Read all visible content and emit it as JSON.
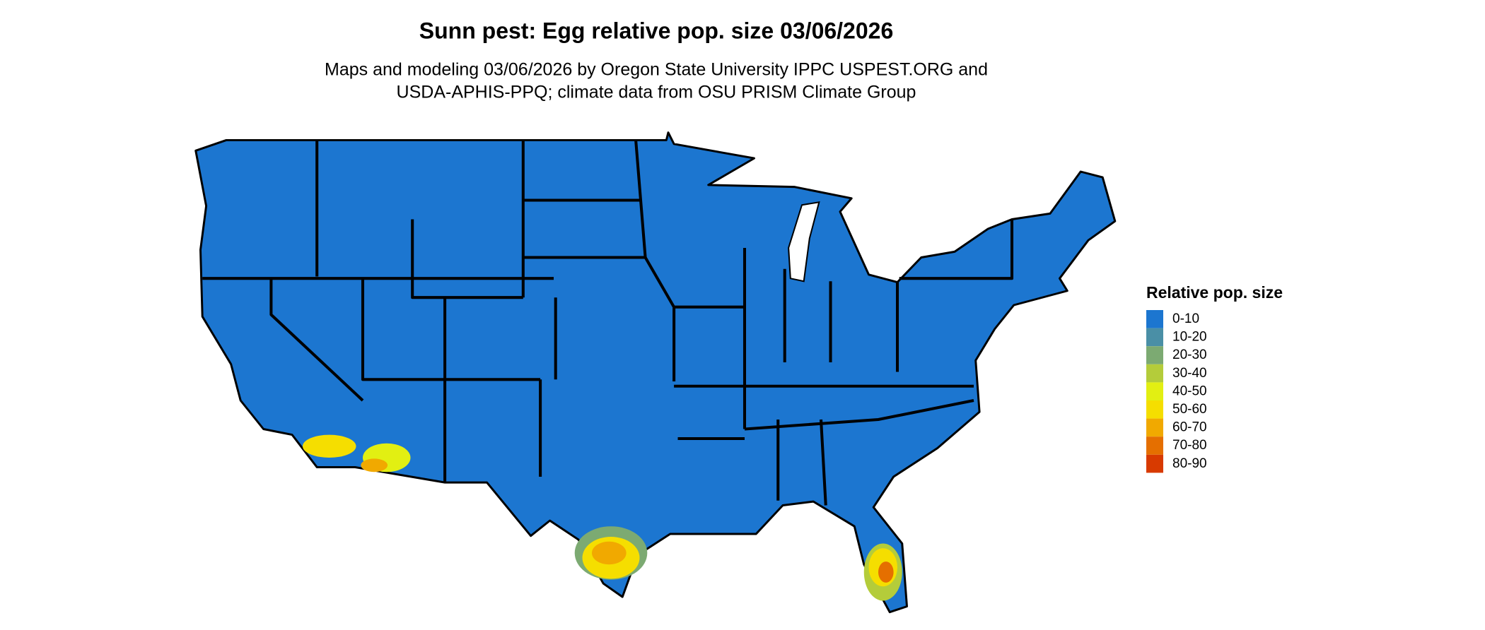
{
  "header": {
    "title": "Sunn pest: Egg relative pop. size 03/06/2026",
    "subtitle": [
      "Maps and modeling 03/06/2026 by Oregon State University IPPC USPEST.ORG and",
      "USDA-APHIS-PPQ; climate data from OSU PRISM Climate Group"
    ]
  },
  "legend": {
    "title": "Relative pop. size",
    "items": [
      {
        "label": "0-10",
        "color": "#1c76d0"
      },
      {
        "label": "10-20",
        "color": "#4a8fa6"
      },
      {
        "label": "20-30",
        "color": "#7caa72"
      },
      {
        "label": "30-40",
        "color": "#b4cc3a"
      },
      {
        "label": "40-50",
        "color": "#e2ef12"
      },
      {
        "label": "50-60",
        "color": "#f5de00"
      },
      {
        "label": "60-70",
        "color": "#f1a900"
      },
      {
        "label": "70-80",
        "color": "#e56f00"
      },
      {
        "label": "80-90",
        "color": "#d83a00"
      }
    ]
  }
}
